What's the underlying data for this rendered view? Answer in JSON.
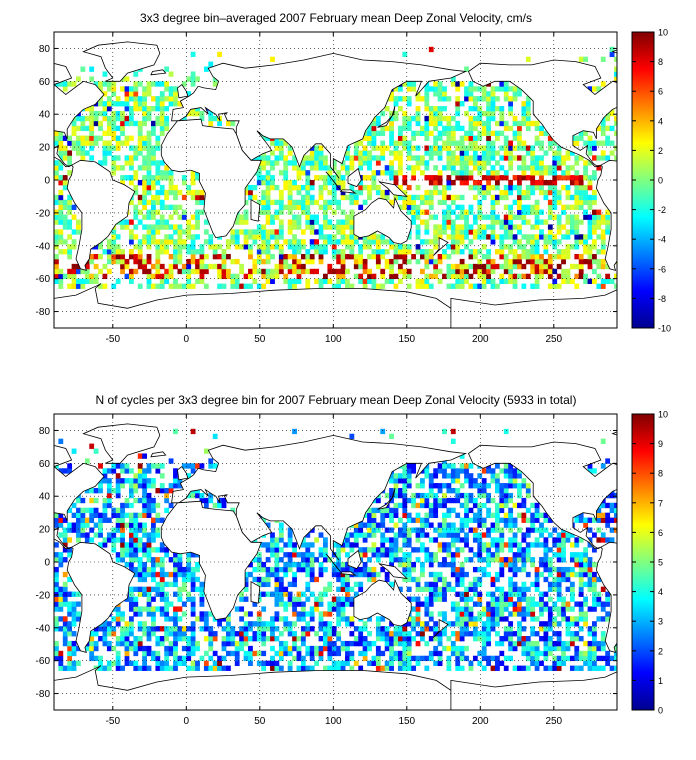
{
  "chart_data": [
    {
      "type": "heatmap",
      "title": "3x3 degree bin–averaged 2007 February mean Deep Zonal Velocity, cm/s",
      "xlabel": "",
      "ylabel": "",
      "xlim": [
        -90,
        293
      ],
      "ylim": [
        -90,
        90
      ],
      "x_ticks": [
        -50,
        0,
        50,
        100,
        150,
        200,
        250
      ],
      "y_ticks": [
        80,
        60,
        40,
        20,
        0,
        -20,
        -40,
        -60,
        -80
      ],
      "grid": "dotted",
      "colormap": "jet",
      "colorbar": {
        "min": -10,
        "max": 10,
        "ticks": [
          10,
          8,
          6,
          4,
          2,
          0,
          -2,
          -4,
          -6,
          -8,
          -10
        ],
        "placement": "right"
      },
      "bin_size_deg": 3
    },
    {
      "type": "heatmap",
      "title": "N of cycles per 3x3 degree bin for 2007 February mean Deep Zonal Velocity (5933 in total)",
      "xlabel": "",
      "ylabel": "",
      "xlim": [
        -90,
        293
      ],
      "ylim": [
        -90,
        90
      ],
      "x_ticks": [
        -50,
        0,
        50,
        100,
        150,
        200,
        250
      ],
      "y_ticks": [
        80,
        60,
        40,
        20,
        0,
        -20,
        -40,
        -60,
        -80
      ],
      "grid": "dotted",
      "colormap": "jet",
      "colorbar": {
        "min": 0,
        "max": 10,
        "ticks": [
          10,
          9,
          8,
          7,
          6,
          5,
          4,
          3,
          2,
          1,
          0
        ],
        "placement": "right"
      },
      "bin_size_deg": 3
    }
  ]
}
